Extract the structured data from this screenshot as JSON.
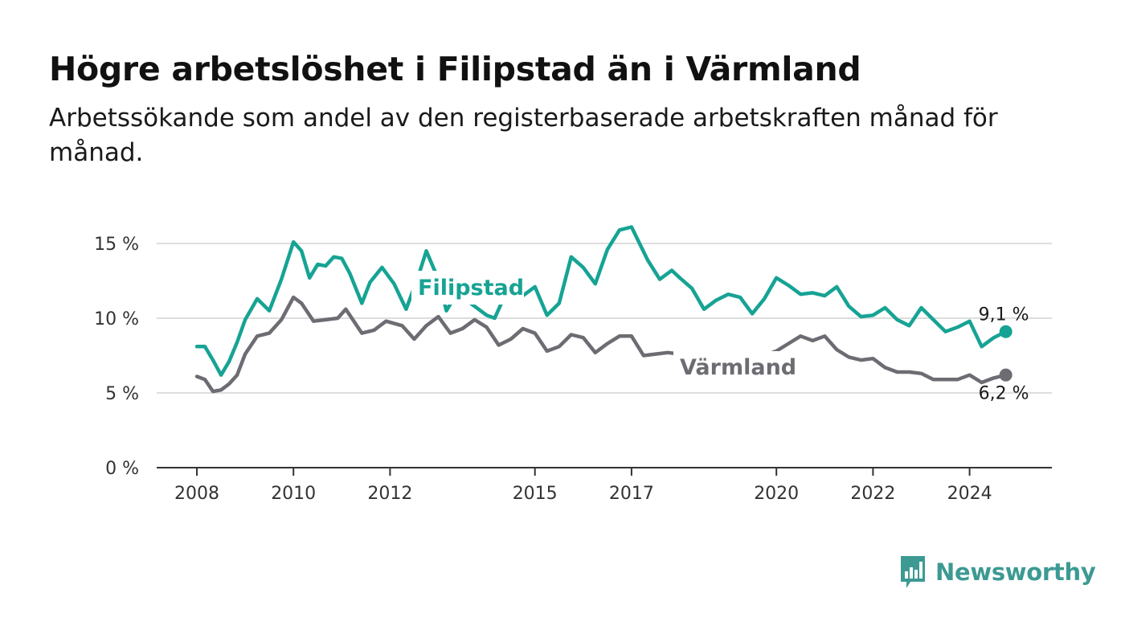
{
  "header": {
    "title": "Högre arbetslöshet i Filipstad än i Värmland",
    "subtitle": "Arbetssökande som andel av den registerbaserade arbetskraften månad för månad."
  },
  "brand": {
    "name": "Newsworthy",
    "color": "#3c9a93",
    "icon": "bar-chart-speech-bubble-icon"
  },
  "chart_data": {
    "type": "line",
    "x_ticks": [
      "2008",
      "2010",
      "2012",
      "2015",
      "2017",
      "2020",
      "2022",
      "2024"
    ],
    "y_ticks": [
      0,
      5,
      10,
      15
    ],
    "y_tick_labels": [
      "0 %",
      "5 %",
      "10 %",
      "15 %"
    ],
    "ylim": [
      0,
      15
    ],
    "grid": true,
    "series": [
      {
        "name": "Filipstad",
        "color": "#16a394",
        "end_label": "9,1 %",
        "points": [
          [
            "2008-01",
            8.1
          ],
          [
            "2008-03",
            8.1
          ],
          [
            "2008-05",
            7.2
          ],
          [
            "2008-07",
            6.2
          ],
          [
            "2008-09",
            7.1
          ],
          [
            "2008-11",
            8.4
          ],
          [
            "2009-01",
            9.9
          ],
          [
            "2009-04",
            11.3
          ],
          [
            "2009-07",
            10.5
          ],
          [
            "2009-10",
            12.6
          ],
          [
            "2010-01",
            15.1
          ],
          [
            "2010-03",
            14.5
          ],
          [
            "2010-05",
            12.7
          ],
          [
            "2010-07",
            13.6
          ],
          [
            "2010-09",
            13.5
          ],
          [
            "2010-11",
            14.1
          ],
          [
            "2011-01",
            14.0
          ],
          [
            "2011-03",
            13.0
          ],
          [
            "2011-06",
            11.0
          ],
          [
            "2011-08",
            12.4
          ],
          [
            "2011-11",
            13.4
          ],
          [
            "2012-02",
            12.3
          ],
          [
            "2012-05",
            10.6
          ],
          [
            "2012-08",
            12.8
          ],
          [
            "2012-10",
            14.5
          ],
          [
            "2013-01",
            12.6
          ],
          [
            "2013-03",
            10.5
          ],
          [
            "2013-05",
            11.4
          ],
          [
            "2013-08",
            11.2
          ],
          [
            "2014-01",
            10.2
          ],
          [
            "2014-03",
            10.0
          ],
          [
            "2014-05",
            11.2
          ],
          [
            "2014-08",
            11.6
          ],
          [
            "2014-10",
            11.5
          ],
          [
            "2015-01",
            12.1
          ],
          [
            "2015-04",
            10.2
          ],
          [
            "2015-07",
            11.0
          ],
          [
            "2015-10",
            14.1
          ],
          [
            "2016-01",
            13.4
          ],
          [
            "2016-04",
            12.3
          ],
          [
            "2016-07",
            14.6
          ],
          [
            "2016-10",
            15.9
          ],
          [
            "2017-01",
            16.1
          ],
          [
            "2017-05",
            13.9
          ],
          [
            "2017-08",
            12.6
          ],
          [
            "2017-11",
            13.2
          ],
          [
            "2018-01",
            12.7
          ],
          [
            "2018-04",
            12.0
          ],
          [
            "2018-07",
            10.6
          ],
          [
            "2018-10",
            11.2
          ],
          [
            "2019-01",
            11.6
          ],
          [
            "2019-04",
            11.4
          ],
          [
            "2019-07",
            10.3
          ],
          [
            "2019-10",
            11.3
          ],
          [
            "2020-01",
            12.7
          ],
          [
            "2020-04",
            12.2
          ],
          [
            "2020-07",
            11.6
          ],
          [
            "2020-10",
            11.7
          ],
          [
            "2021-01",
            11.5
          ],
          [
            "2021-04",
            12.1
          ],
          [
            "2021-07",
            10.8
          ],
          [
            "2021-10",
            10.1
          ],
          [
            "2022-01",
            10.2
          ],
          [
            "2022-04",
            10.7
          ],
          [
            "2022-07",
            9.9
          ],
          [
            "2022-10",
            9.5
          ],
          [
            "2023-01",
            10.7
          ],
          [
            "2023-04",
            9.9
          ],
          [
            "2023-07",
            9.1
          ],
          [
            "2023-10",
            9.4
          ],
          [
            "2024-01",
            9.8
          ],
          [
            "2024-04",
            8.1
          ],
          [
            "2024-07",
            8.7
          ],
          [
            "2024-10",
            9.1
          ]
        ]
      },
      {
        "name": "Värmland",
        "color": "#6d6c73",
        "end_label": "6,2 %",
        "points": [
          [
            "2008-01",
            6.1
          ],
          [
            "2008-03",
            5.9
          ],
          [
            "2008-05",
            5.1
          ],
          [
            "2008-07",
            5.2
          ],
          [
            "2008-09",
            5.6
          ],
          [
            "2008-11",
            6.2
          ],
          [
            "2009-01",
            7.6
          ],
          [
            "2009-04",
            8.8
          ],
          [
            "2009-07",
            9.0
          ],
          [
            "2009-10",
            9.9
          ],
          [
            "2010-01",
            11.4
          ],
          [
            "2010-03",
            11.0
          ],
          [
            "2010-06",
            9.8
          ],
          [
            "2010-09",
            9.9
          ],
          [
            "2010-12",
            10.0
          ],
          [
            "2011-02",
            10.6
          ],
          [
            "2011-06",
            9.0
          ],
          [
            "2011-09",
            9.2
          ],
          [
            "2011-12",
            9.8
          ],
          [
            "2012-04",
            9.5
          ],
          [
            "2012-07",
            8.6
          ],
          [
            "2012-10",
            9.5
          ],
          [
            "2013-01",
            10.1
          ],
          [
            "2013-04",
            9.0
          ],
          [
            "2013-07",
            9.3
          ],
          [
            "2013-10",
            9.9
          ],
          [
            "2014-01",
            9.4
          ],
          [
            "2014-04",
            8.2
          ],
          [
            "2014-07",
            8.6
          ],
          [
            "2014-10",
            9.3
          ],
          [
            "2015-01",
            9.0
          ],
          [
            "2015-04",
            7.8
          ],
          [
            "2015-07",
            8.1
          ],
          [
            "2015-10",
            8.9
          ],
          [
            "2016-01",
            8.7
          ],
          [
            "2016-04",
            7.7
          ],
          [
            "2016-07",
            8.3
          ],
          [
            "2016-10",
            8.8
          ],
          [
            "2017-01",
            8.8
          ],
          [
            "2017-04",
            7.5
          ],
          [
            "2017-07",
            7.6
          ],
          [
            "2017-10",
            7.7
          ],
          [
            "2018-01",
            7.6
          ],
          [
            "2019-10",
            7.5
          ],
          [
            "2020-01",
            7.8
          ],
          [
            "2020-04",
            8.3
          ],
          [
            "2020-07",
            8.8
          ],
          [
            "2020-10",
            8.5
          ],
          [
            "2021-01",
            8.8
          ],
          [
            "2021-04",
            7.9
          ],
          [
            "2021-07",
            7.4
          ],
          [
            "2021-10",
            7.2
          ],
          [
            "2022-01",
            7.3
          ],
          [
            "2022-04",
            6.7
          ],
          [
            "2022-07",
            6.4
          ],
          [
            "2022-10",
            6.4
          ],
          [
            "2023-01",
            6.3
          ],
          [
            "2023-04",
            5.9
          ],
          [
            "2023-07",
            5.9
          ],
          [
            "2023-10",
            5.9
          ],
          [
            "2024-01",
            6.2
          ],
          [
            "2024-04",
            5.7
          ],
          [
            "2024-07",
            6.0
          ],
          [
            "2024-10",
            6.2
          ]
        ]
      }
    ]
  }
}
